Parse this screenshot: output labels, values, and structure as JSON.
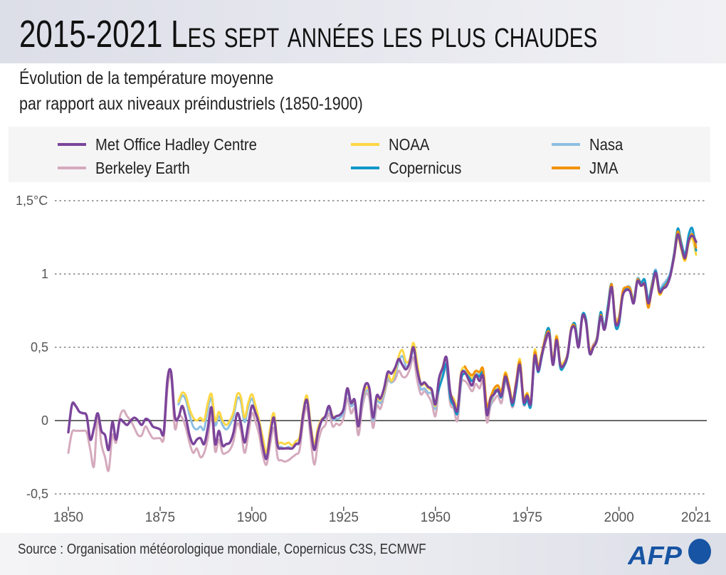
{
  "title": "2015-2021 Les sept années les plus chaudes",
  "subtitle": [
    "Évolution de la température moyenne",
    "par rapport aux niveaux préindustriels (1850-1900)"
  ],
  "source": "Source : Organisation météorologique mondiale, Copernicus C3S, ECMWF",
  "logo": "AFP",
  "colors": {
    "brand": "#1754a3"
  },
  "chart_data": {
    "type": "line",
    "title": "",
    "xlabel": "",
    "ylabel": "",
    "xlim": [
      1850,
      2021
    ],
    "ylim": [
      -0.5,
      1.5
    ],
    "x_ticks": [
      "1850",
      "1875",
      "1900",
      "1925",
      "1950",
      "1975",
      "2000",
      "2021"
    ],
    "x_tick_values": [
      1850,
      1875,
      1900,
      1925,
      1950,
      1975,
      2000,
      2021
    ],
    "y_ticks": [
      {
        "value": 1.5,
        "label": "1,5°C",
        "style": "dotted"
      },
      {
        "value": 1,
        "label": "1",
        "style": "dotted"
      },
      {
        "value": 0.5,
        "label": "0,5",
        "style": "dotted"
      },
      {
        "value": 0,
        "label": "0",
        "style": "solid"
      },
      {
        "value": -0.5,
        "label": "-0,5",
        "style": "dotted"
      }
    ],
    "grid": "horizontal",
    "legend_position": "top",
    "series": [
      {
        "name": "Met Office Hadley Centre",
        "color": "#7b449b",
        "start": 1850,
        "values": [
          -0.08,
          0.11,
          0.1,
          0.06,
          0.05,
          0.03,
          -0.13,
          -0.05,
          0.05,
          -0.07,
          -0.1,
          -0.2,
          -0.01,
          -0.13,
          0.0,
          -0.01,
          -0.03,
          0.0,
          0.02,
          0.0,
          -0.03,
          0.01,
          0.0,
          -0.04,
          -0.05,
          -0.06,
          -0.08,
          0.28,
          0.33,
          0.03,
          0.02,
          0.1,
          0.02,
          -0.1,
          -0.16,
          -0.13,
          -0.12,
          -0.16,
          -0.05,
          0.09,
          -0.16,
          -0.07,
          -0.17,
          -0.16,
          -0.15,
          -0.08,
          0.05,
          -0.02,
          -0.15,
          -0.03,
          0.1,
          0.05,
          -0.03,
          -0.18,
          -0.26,
          -0.1,
          0.02,
          -0.17,
          -0.19,
          -0.19,
          -0.19,
          -0.19,
          -0.16,
          -0.14,
          0.05,
          0.14,
          -0.05,
          -0.2,
          -0.08,
          0.0,
          0.03,
          0.1,
          0.02,
          0.03,
          0.04,
          0.08,
          0.22,
          0.12,
          0.14,
          -0.04,
          0.15,
          0.25,
          0.22,
          0.02,
          0.17,
          0.15,
          0.22,
          0.33,
          0.32,
          0.36,
          0.42,
          0.38,
          0.35,
          0.4,
          0.5,
          0.35,
          0.25,
          0.26,
          0.23,
          0.21,
          0.11,
          0.29,
          0.36,
          0.43,
          0.2,
          0.12,
          0.07,
          0.31,
          0.33,
          0.28,
          0.24,
          0.31,
          0.27,
          0.3,
          0.04,
          0.15,
          0.18,
          0.21,
          0.17,
          0.3,
          0.22,
          0.12,
          0.25,
          0.38,
          0.13,
          0.17,
          0.12,
          0.44,
          0.34,
          0.45,
          0.55,
          0.59,
          0.38,
          0.55,
          0.38,
          0.38,
          0.45,
          0.62,
          0.63,
          0.5,
          0.71,
          0.67,
          0.46,
          0.5,
          0.55,
          0.71,
          0.62,
          0.75,
          0.91,
          0.67,
          0.68,
          0.85,
          0.89,
          0.88,
          0.8,
          0.95,
          0.92,
          0.93,
          0.8,
          0.9,
          1.01,
          0.88,
          0.9,
          0.92,
          0.99,
          1.12,
          1.27,
          1.18,
          1.11,
          1.23,
          1.26,
          1.22
        ]
      },
      {
        "name": "Berkeley Earth",
        "color": "#d5aabd",
        "start": 1850,
        "values": [
          -0.22,
          -0.08,
          -0.07,
          -0.07,
          -0.07,
          -0.08,
          -0.2,
          -0.31,
          0.03,
          -0.16,
          -0.25,
          -0.34,
          -0.1,
          -0.15,
          0.02,
          0.07,
          0.03,
          0.0,
          -0.05,
          -0.1,
          -0.1,
          -0.04,
          -0.08,
          -0.12,
          -0.12,
          -0.12,
          -0.12,
          0.22,
          0.3,
          -0.05,
          0.03,
          0.02,
          -0.05,
          -0.15,
          -0.22,
          -0.19,
          -0.25,
          -0.22,
          -0.12,
          0.04,
          -0.21,
          -0.13,
          -0.22,
          -0.22,
          -0.2,
          -0.14,
          -0.02,
          -0.07,
          -0.22,
          -0.1,
          0.05,
          -0.01,
          -0.1,
          -0.24,
          -0.3,
          -0.16,
          -0.05,
          -0.25,
          -0.27,
          -0.28,
          -0.27,
          -0.25,
          -0.23,
          -0.2,
          0.0,
          0.09,
          -0.12,
          -0.3,
          -0.15,
          -0.06,
          -0.03,
          0.05,
          -0.04,
          -0.02,
          -0.03,
          0.02,
          0.15,
          0.05,
          0.08,
          -0.1,
          0.08,
          0.18,
          0.15,
          -0.05,
          0.1,
          0.08,
          0.17,
          0.27,
          0.26,
          0.28,
          0.34,
          0.3,
          0.3,
          0.35,
          0.43,
          0.28,
          0.18,
          0.2,
          0.17,
          0.12,
          0.03,
          0.22,
          0.3,
          0.35,
          0.12,
          0.08,
          0.0,
          0.25,
          0.27,
          0.24,
          0.2,
          0.25,
          0.22,
          0.26,
          -0.01,
          0.1,
          0.14,
          0.17,
          0.12,
          0.26,
          0.2,
          0.09,
          0.22,
          0.36,
          0.11,
          0.15,
          0.1,
          0.42,
          0.33,
          0.44,
          0.53,
          0.58,
          0.4,
          0.57,
          0.39,
          0.39,
          0.45,
          0.62,
          0.64,
          0.51,
          0.71,
          0.68,
          0.48,
          0.52,
          0.57,
          0.73,
          0.63,
          0.76,
          0.92,
          0.7,
          0.7,
          0.86,
          0.9,
          0.89,
          0.82,
          0.96,
          0.93,
          0.95,
          0.83,
          0.92,
          1.02,
          0.9,
          0.92,
          0.94,
          1.01,
          1.13,
          1.28,
          1.2,
          1.12,
          1.24,
          1.28,
          1.2
        ]
      },
      {
        "name": "NOAA",
        "color": "#fdd744",
        "start": 1880,
        "values": [
          0.13,
          0.19,
          0.17,
          0.08,
          0.02,
          0.0,
          0.02,
          0.0,
          0.12,
          0.18,
          0.0,
          0.06,
          0.0,
          -0.03,
          0.0,
          0.06,
          0.18,
          0.16,
          0.02,
          0.12,
          0.18,
          0.1,
          0.0,
          -0.12,
          -0.22,
          -0.05,
          0.05,
          -0.14,
          -0.15,
          -0.16,
          -0.15,
          -0.17,
          -0.14,
          -0.11,
          0.07,
          0.17,
          -0.02,
          -0.16,
          -0.05,
          0.01,
          0.03,
          0.1,
          0.03,
          0.03,
          0.04,
          0.08,
          0.22,
          0.12,
          0.13,
          -0.02,
          0.14,
          0.22,
          0.2,
          0.02,
          0.15,
          0.14,
          0.2,
          0.31,
          0.27,
          0.33,
          0.44,
          0.48,
          0.4,
          0.42,
          0.53,
          0.4,
          0.25,
          0.25,
          0.22,
          0.2,
          0.1,
          0.27,
          0.37,
          0.42,
          0.2,
          0.15,
          0.1,
          0.33,
          0.36,
          0.32,
          0.29,
          0.34,
          0.33,
          0.34,
          0.08,
          0.13,
          0.2,
          0.24,
          0.2,
          0.33,
          0.25,
          0.14,
          0.27,
          0.42,
          0.16,
          0.19,
          0.14,
          0.48,
          0.37,
          0.47,
          0.57,
          0.6,
          0.41,
          0.58,
          0.4,
          0.4,
          0.46,
          0.63,
          0.65,
          0.52,
          0.72,
          0.69,
          0.49,
          0.5,
          0.57,
          0.73,
          0.64,
          0.77,
          0.93,
          0.7,
          0.71,
          0.86,
          0.9,
          0.9,
          0.82,
          0.96,
          0.93,
          0.93,
          0.8,
          0.93,
          1.0,
          0.86,
          0.9,
          0.93,
          0.99,
          1.11,
          1.25,
          1.16,
          1.09,
          1.21,
          1.24,
          1.13
        ]
      },
      {
        "name": "Nasa",
        "color": "#8dbfe2",
        "start": 1880,
        "values": [
          0.11,
          0.17,
          0.14,
          0.04,
          -0.04,
          -0.06,
          -0.04,
          -0.06,
          0.08,
          0.15,
          -0.03,
          0.03,
          -0.03,
          -0.06,
          -0.03,
          0.03,
          0.15,
          0.13,
          -0.01,
          0.09,
          0.15,
          0.07,
          -0.02,
          -0.14,
          -0.24,
          -0.07,
          0.03,
          -0.16,
          -0.18,
          -0.19,
          -0.18,
          -0.19,
          -0.16,
          -0.13,
          0.05,
          0.15,
          -0.04,
          -0.19,
          -0.07,
          0.0,
          0.02,
          0.08,
          0.01,
          0.01,
          0.02,
          0.06,
          0.2,
          0.1,
          0.11,
          -0.04,
          0.12,
          0.2,
          0.18,
          0.0,
          0.13,
          0.12,
          0.18,
          0.29,
          0.26,
          0.31,
          0.4,
          0.44,
          0.37,
          0.39,
          0.48,
          0.37,
          0.22,
          0.22,
          0.19,
          0.18,
          0.08,
          0.25,
          0.34,
          0.4,
          0.18,
          0.13,
          0.08,
          0.31,
          0.34,
          0.3,
          0.27,
          0.32,
          0.31,
          0.32,
          0.06,
          0.11,
          0.18,
          0.22,
          0.18,
          0.31,
          0.24,
          0.12,
          0.25,
          0.4,
          0.14,
          0.17,
          0.12,
          0.46,
          0.36,
          0.46,
          0.56,
          0.6,
          0.4,
          0.58,
          0.39,
          0.39,
          0.45,
          0.63,
          0.65,
          0.52,
          0.72,
          0.69,
          0.48,
          0.5,
          0.56,
          0.74,
          0.64,
          0.77,
          0.93,
          0.7,
          0.71,
          0.87,
          0.91,
          0.91,
          0.83,
          0.97,
          0.94,
          0.96,
          0.83,
          0.94,
          1.03,
          0.9,
          0.93,
          0.96,
          1.01,
          1.14,
          1.3,
          1.21,
          1.14,
          1.25,
          1.29,
          1.21
        ]
      },
      {
        "name": "Copernicus",
        "color": "#0f98c8",
        "start": 1950,
        "values": [
          0.12,
          0.22,
          0.3,
          0.38,
          0.16,
          0.1,
          0.05,
          0.28,
          0.32,
          0.3,
          0.27,
          0.31,
          0.3,
          0.32,
          0.08,
          0.14,
          0.2,
          0.2,
          0.16,
          0.28,
          0.22,
          0.1,
          0.22,
          0.38,
          0.12,
          0.14,
          0.1,
          0.42,
          0.33,
          0.44,
          0.58,
          0.62,
          0.38,
          0.56,
          0.36,
          0.37,
          0.44,
          0.62,
          0.66,
          0.52,
          0.72,
          0.69,
          0.46,
          0.5,
          0.56,
          0.74,
          0.63,
          0.79,
          0.93,
          0.65,
          0.66,
          0.86,
          0.9,
          0.89,
          0.82,
          0.96,
          0.94,
          0.96,
          0.82,
          0.93,
          1.02,
          0.89,
          0.91,
          0.94,
          1.0,
          1.14,
          1.31,
          1.21,
          1.13,
          1.27,
          1.31,
          1.16
        ]
      },
      {
        "name": "JMA",
        "color": "#f39200",
        "start": 1958,
        "values": [
          0.37,
          0.33,
          0.31,
          0.34,
          0.33,
          0.35,
          0.1,
          0.16,
          0.22,
          0.24,
          0.2,
          0.32,
          0.24,
          0.13,
          0.27,
          0.4,
          0.15,
          0.18,
          0.12,
          0.46,
          0.36,
          0.46,
          0.57,
          0.6,
          0.4,
          0.57,
          0.38,
          0.38,
          0.45,
          0.63,
          0.64,
          0.51,
          0.7,
          0.67,
          0.47,
          0.51,
          0.55,
          0.72,
          0.62,
          0.76,
          0.93,
          0.68,
          0.7,
          0.88,
          0.91,
          0.9,
          0.81,
          0.96,
          0.92,
          0.92,
          0.77,
          0.92,
          1.0,
          0.87,
          0.9,
          0.93,
          0.99,
          1.13,
          1.29,
          1.19,
          1.1,
          1.23,
          1.27,
          1.18
        ]
      }
    ]
  }
}
